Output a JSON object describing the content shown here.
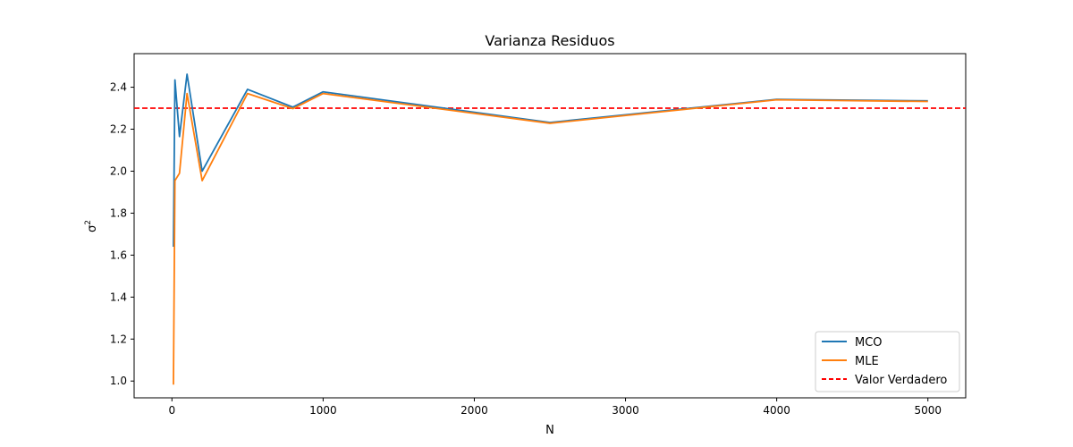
{
  "chart_data": {
    "type": "line",
    "title": "Varianza Residuos",
    "xlabel": "N",
    "ylabel_base": "σ",
    "ylabel_sup": "2",
    "xlim": [
      -250,
      5250
    ],
    "ylim": [
      0.92,
      2.56
    ],
    "xticks": [
      0,
      1000,
      2000,
      3000,
      4000,
      5000
    ],
    "yticks": [
      1.0,
      1.2,
      1.4,
      1.6,
      1.8,
      2.0,
      2.2,
      2.4
    ],
    "ytick_labels": [
      "1.0",
      "1.2",
      "1.4",
      "1.6",
      "1.8",
      "2.0",
      "2.2",
      "2.4"
    ],
    "grid": false,
    "legend_position": "lower-right",
    "series": [
      {
        "name": "MCO",
        "color": "#1f77b4",
        "x": [
          10,
          20,
          50,
          100,
          200,
          500,
          800,
          1000,
          2500,
          4000,
          5000
        ],
        "y": [
          1.64,
          2.435,
          2.165,
          2.462,
          2.0,
          2.39,
          2.305,
          2.378,
          2.232,
          2.342,
          2.335
        ]
      },
      {
        "name": "MLE",
        "color": "#ff7f0e",
        "x": [
          10,
          20,
          50,
          100,
          200,
          500,
          800,
          1000,
          2500,
          4000,
          5000
        ],
        "y": [
          0.983,
          1.955,
          1.99,
          2.37,
          1.955,
          2.37,
          2.298,
          2.37,
          2.228,
          2.34,
          2.332
        ]
      }
    ],
    "reference_line": {
      "name": "Valor Verdadero",
      "y": 2.3,
      "color": "#ff0000",
      "style": "dashed"
    }
  }
}
